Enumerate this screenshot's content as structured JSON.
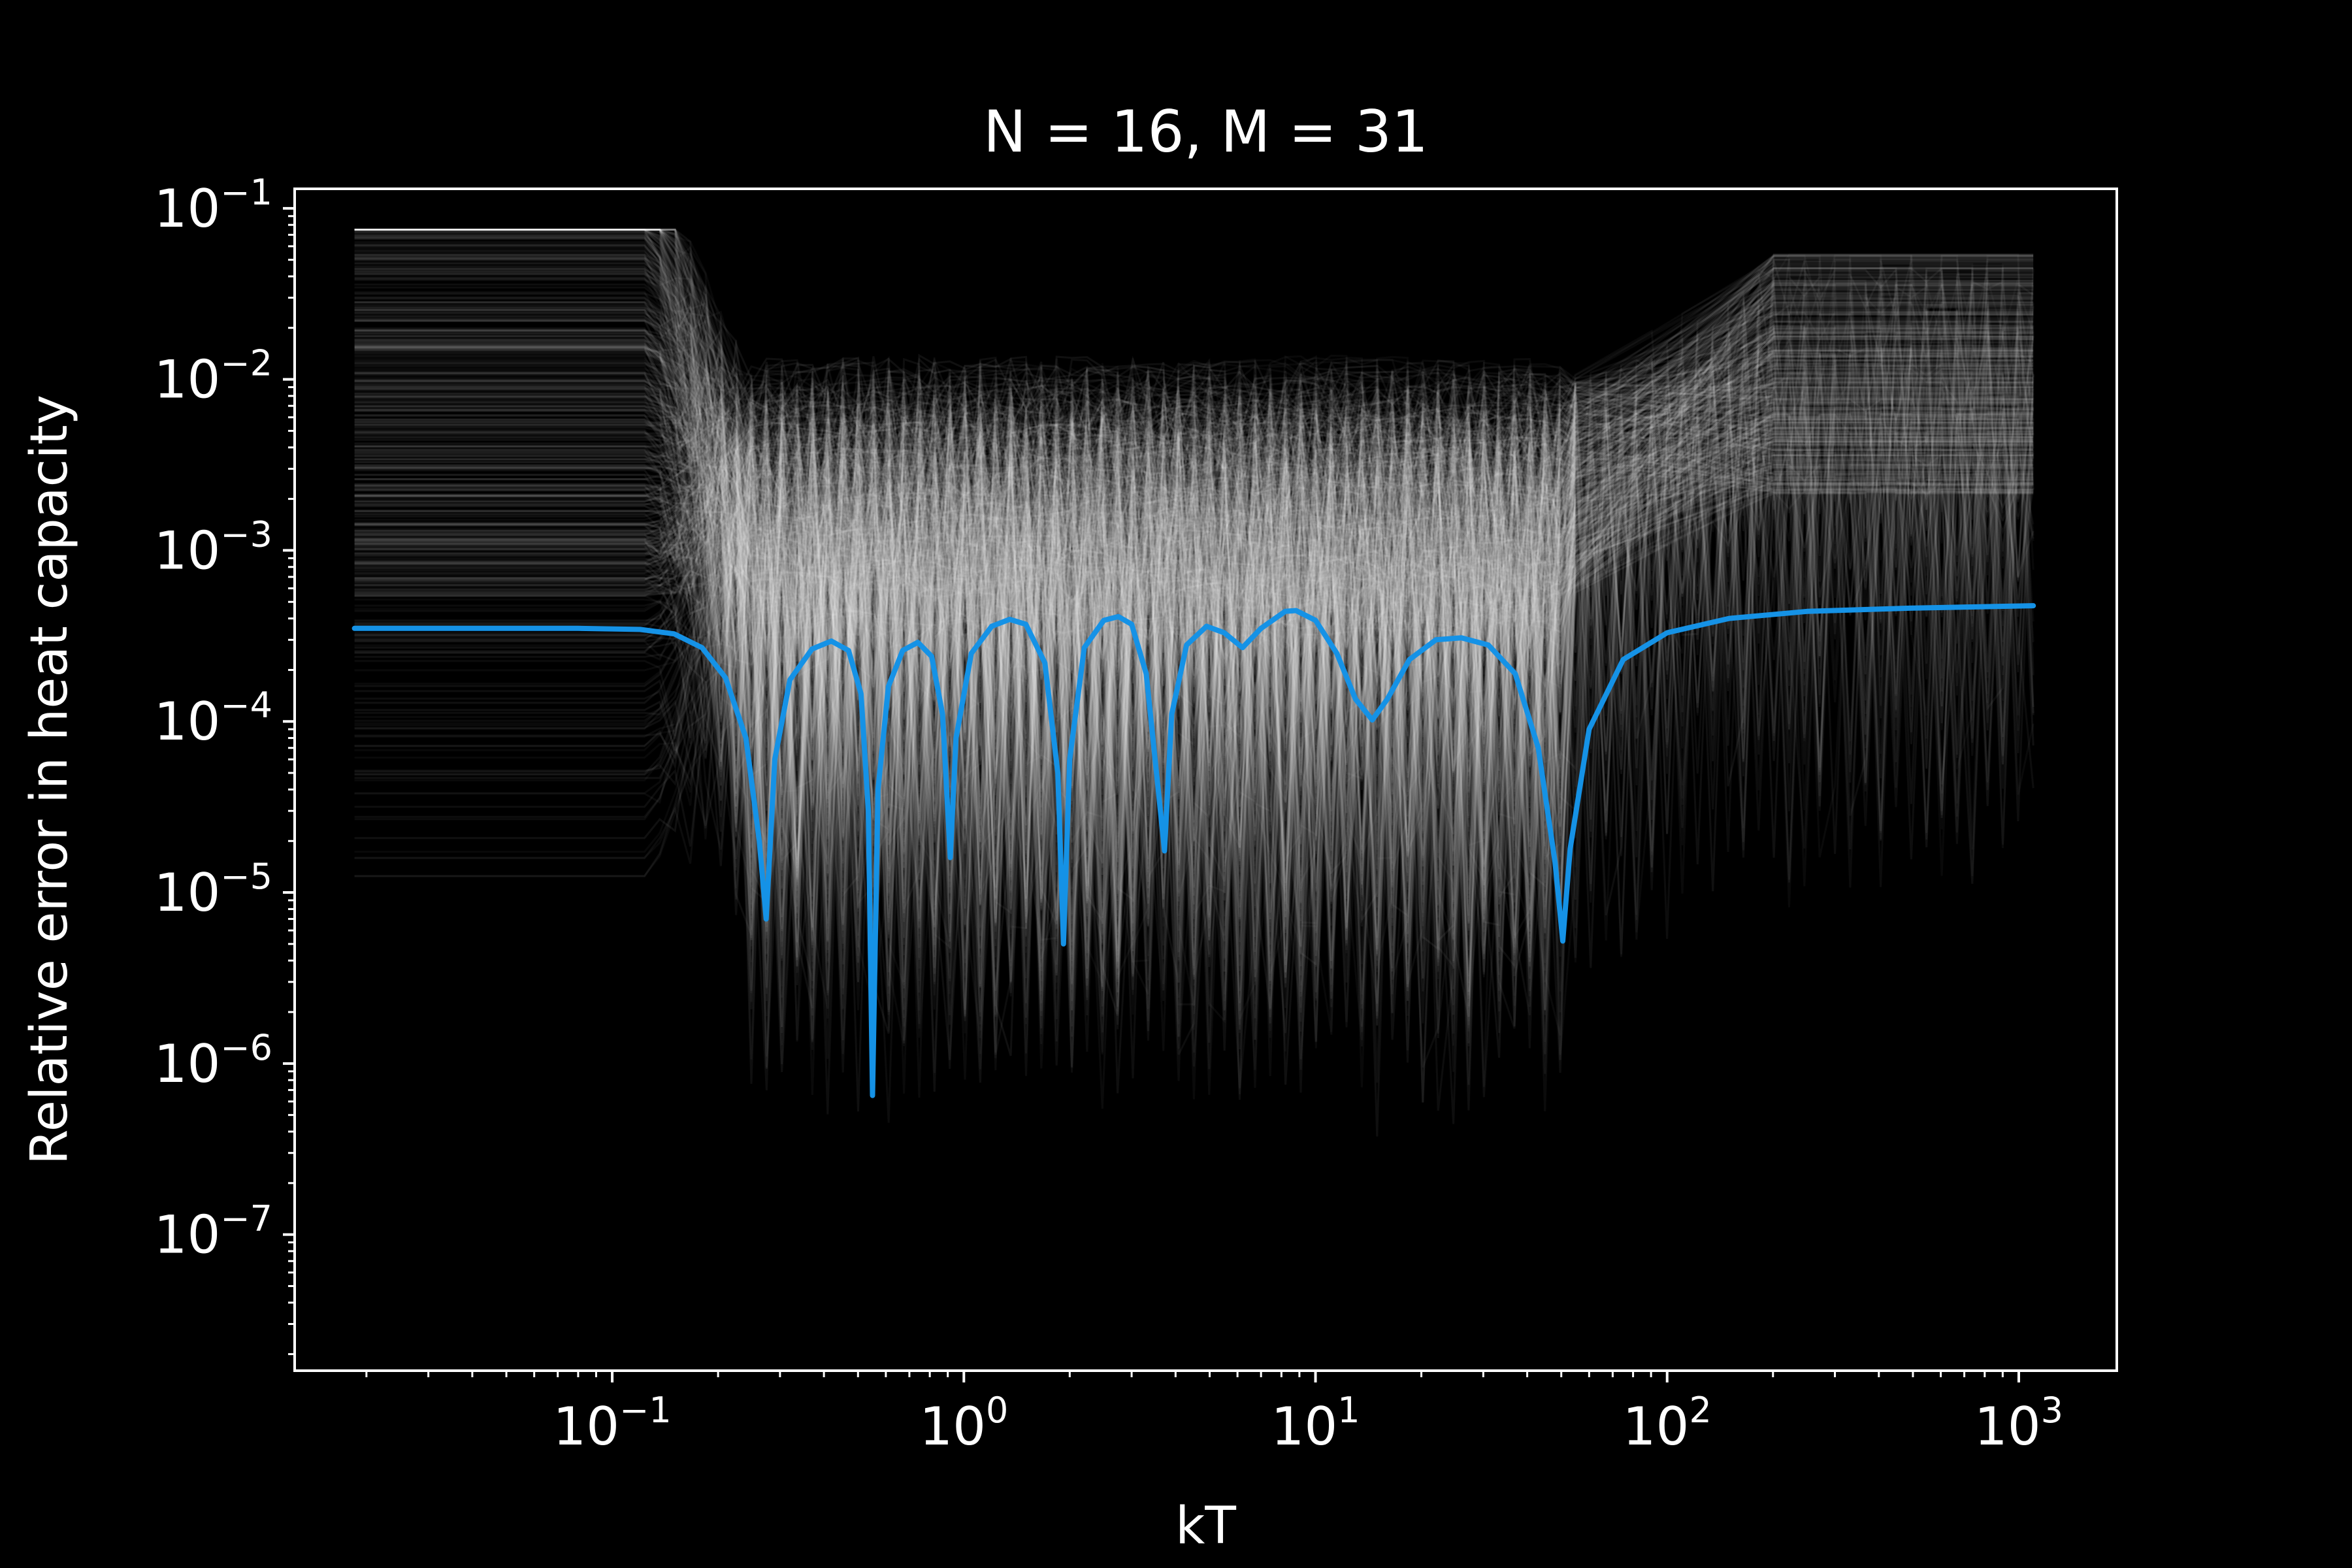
{
  "chart_data": {
    "type": "line",
    "title": "N = 16, M = 31",
    "xlabel": "kT",
    "ylabel": "Relative error in heat capacity",
    "xscale": "log",
    "yscale": "log",
    "xlim": [
      0.0125,
      1900
    ],
    "ylim": [
      1.6e-08,
      0.13
    ],
    "grid": false,
    "background": "#000000",
    "foreground": "#ffffff",
    "x_ticks": [
      {
        "value": 0.1,
        "base": "10",
        "exp": "−1"
      },
      {
        "value": 1,
        "base": "10",
        "exp": "0"
      },
      {
        "value": 10,
        "base": "10",
        "exp": "1"
      },
      {
        "value": 100,
        "base": "10",
        "exp": "2"
      },
      {
        "value": 1000,
        "base": "10",
        "exp": "3"
      }
    ],
    "y_ticks": [
      {
        "value": 0.1,
        "base": "10",
        "exp": "−1"
      },
      {
        "value": 0.01,
        "base": "10",
        "exp": "−2"
      },
      {
        "value": 0.001,
        "base": "10",
        "exp": "−3"
      },
      {
        "value": 0.0001,
        "base": "10",
        "exp": "−4"
      },
      {
        "value": 1e-05,
        "base": "10",
        "exp": "−5"
      },
      {
        "value": 1e-06,
        "base": "10",
        "exp": "−6"
      },
      {
        "value": 1e-07,
        "base": "10",
        "exp": "−7"
      }
    ],
    "series": [
      {
        "color": "#1592e6",
        "points": [
          [
            0.0185,
            0.00035
          ],
          [
            0.08,
            0.00035
          ],
          [
            0.12,
            0.000345
          ],
          [
            0.15,
            0.000325
          ],
          [
            0.18,
            0.00027
          ],
          [
            0.21,
            0.00018
          ],
          [
            0.24,
            8e-05
          ],
          [
            0.262,
            2e-05
          ],
          [
            0.274,
            7e-06
          ],
          [
            0.29,
            6e-05
          ],
          [
            0.32,
            0.000175
          ],
          [
            0.37,
            0.000265
          ],
          [
            0.42,
            0.000295
          ],
          [
            0.47,
            0.00026
          ],
          [
            0.51,
            0.000145
          ],
          [
            0.535,
            3e-05
          ],
          [
            0.55,
            6.5e-07
          ],
          [
            0.57,
            4e-05
          ],
          [
            0.61,
            0.00016
          ],
          [
            0.67,
            0.00026
          ],
          [
            0.74,
            0.00029
          ],
          [
            0.81,
            0.00024
          ],
          [
            0.87,
            0.00011
          ],
          [
            0.915,
            1.6e-05
          ],
          [
            0.95,
            8e-05
          ],
          [
            1.05,
            0.00025
          ],
          [
            1.2,
            0.00036
          ],
          [
            1.35,
            0.000395
          ],
          [
            1.5,
            0.00037
          ],
          [
            1.7,
            0.00022
          ],
          [
            1.85,
            5e-05
          ],
          [
            1.92,
            5e-06
          ],
          [
            2.0,
            6e-05
          ],
          [
            2.2,
            0.00027
          ],
          [
            2.5,
            0.00039
          ],
          [
            2.75,
            0.00041
          ],
          [
            3.0,
            0.00037
          ],
          [
            3.3,
            0.00019
          ],
          [
            3.55,
            4.5e-05
          ],
          [
            3.72,
            1.75e-05
          ],
          [
            3.9,
            0.00011
          ],
          [
            4.3,
            0.00028
          ],
          [
            4.9,
            0.00036
          ],
          [
            5.5,
            0.00033
          ],
          [
            6.2,
            0.00027
          ],
          [
            7.0,
            0.00035
          ],
          [
            8.2,
            0.00044
          ],
          [
            8.8,
            0.000445
          ],
          [
            10.0,
            0.00039
          ],
          [
            11.5,
            0.00025
          ],
          [
            13.0,
            0.000135
          ],
          [
            14.5,
            0.000102
          ],
          [
            16.0,
            0.000135
          ],
          [
            18.5,
            0.00023
          ],
          [
            22.0,
            0.0003
          ],
          [
            26.0,
            0.000308
          ],
          [
            31.0,
            0.00028
          ],
          [
            37.0,
            0.00019
          ],
          [
            43.0,
            7e-05
          ],
          [
            48.0,
            1.5e-05
          ],
          [
            50.5,
            5.2e-06
          ],
          [
            53.0,
            1.8e-05
          ],
          [
            60.0,
            9e-05
          ],
          [
            75.0,
            0.00023
          ],
          [
            100.0,
            0.00033
          ],
          [
            150.0,
            0.0004
          ],
          [
            250.0,
            0.00044
          ],
          [
            500.0,
            0.00046
          ],
          [
            1100.0,
            0.000475
          ]
        ]
      }
    ],
    "background_ensemble": {
      "description": "many faint gray traces",
      "color": "#ffffff",
      "count": 520
    }
  }
}
